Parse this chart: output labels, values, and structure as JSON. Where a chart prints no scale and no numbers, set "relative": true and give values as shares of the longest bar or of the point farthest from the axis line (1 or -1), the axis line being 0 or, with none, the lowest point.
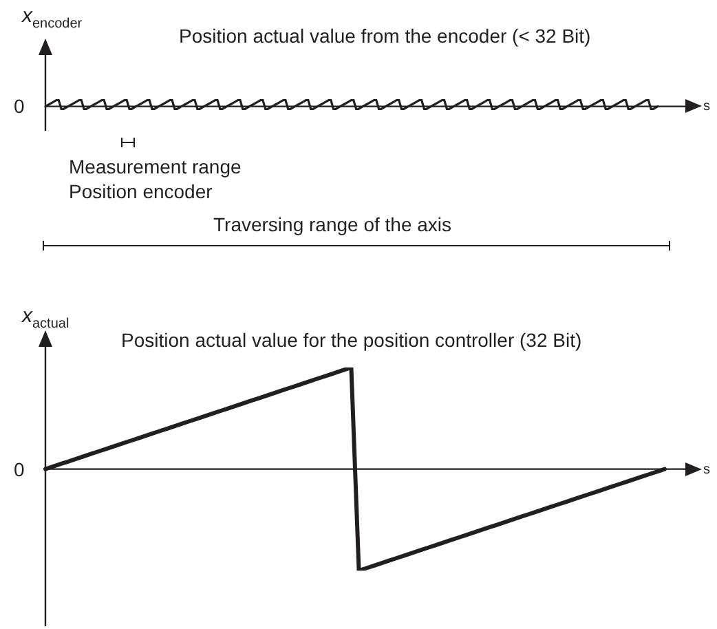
{
  "chart_data": [
    {
      "type": "line",
      "title": "Position actual value from the encoder (< 32 Bit)",
      "ylabel": "x$_{encoder}$",
      "xlabel": "s",
      "relative": true,
      "grid": false,
      "legend": false,
      "marker": "none",
      "line_style": "solid",
      "categories": [
        null,
        null,
        null,
        null,
        null,
        null,
        null,
        null,
        null,
        null,
        null,
        null,
        null,
        null,
        null,
        null,
        null,
        null,
        null,
        null,
        null,
        null,
        null,
        null,
        null,
        null,
        null,
        null,
        null,
        null,
        null,
        null,
        null,
        null,
        null,
        null,
        null,
        null,
        null,
        null,
        null,
        null,
        null,
        null,
        null,
        null,
        null,
        null,
        null,
        null,
        null,
        null,
        null,
        null,
        null,
        null,
        null,
        null,
        null,
        null,
        null,
        null,
        null,
        null,
        null,
        null,
        null,
        null,
        null,
        null,
        null,
        null,
        null,
        null,
        null,
        null,
        null,
        null,
        null,
        null,
        null,
        null,
        null,
        null,
        null,
        null,
        null,
        null,
        null,
        null,
        null,
        null,
        null,
        null,
        null,
        null,
        null,
        null,
        null,
        null,
        null,
        null,
        null,
        null,
        null,
        null,
        null,
        null,
        null,
        null,
        null,
        null,
        null,
        null,
        null,
        null,
        null,
        null,
        null,
        null,
        null,
        null,
        null,
        null,
        null,
        null,
        null,
        null,
        null,
        null,
        null,
        null,
        null,
        null,
        null,
        null,
        null,
        null,
        null,
        null,
        null,
        null,
        null,
        null,
        null,
        null,
        null,
        null,
        null,
        null,
        null,
        null,
        null,
        null,
        null,
        null,
        null,
        null,
        null,
        null,
        null,
        null,
        null,
        null,
        null,
        null,
        null,
        null,
        null,
        null,
        null,
        null,
        null,
        null,
        null,
        null,
        null,
        null,
        null,
        null,
        null,
        null,
        null,
        null,
        null,
        null,
        null,
        null,
        null,
        null
      ],
      "series": [
        {
          "color": "#231f20",
          "values": [
            0,
            0.25,
            0.5,
            0.75,
            1,
            -0.5,
            -0.25,
            0,
            0.25,
            0.5,
            0.75,
            1,
            -0.5,
            -0.25,
            0,
            0.25,
            0.5,
            0.75,
            1,
            -0.5,
            -0.25,
            0,
            0.25,
            0.5,
            0.75,
            1,
            -0.5,
            -0.25,
            0,
            0.25,
            0.5,
            0.75,
            1,
            -0.5,
            -0.25,
            0,
            0.25,
            0.5,
            0.75,
            1,
            -0.5,
            -0.25,
            0,
            0.25,
            0.5,
            0.75,
            1,
            -0.5,
            -0.25,
            0,
            0.25,
            0.5,
            0.75,
            1,
            -0.5,
            -0.25,
            0,
            0.25,
            0.5,
            0.75,
            1,
            -0.5,
            -0.25,
            0,
            0.25,
            0.5,
            0.75,
            1,
            -0.5,
            -0.25,
            0,
            0.25,
            0.5,
            0.75,
            1,
            -0.5,
            -0.25,
            0,
            0.25,
            0.5,
            0.75,
            1,
            -0.5,
            -0.25,
            0,
            0.25,
            0.5,
            0.75,
            1,
            -0.5,
            -0.25,
            0,
            0.25,
            0.5,
            0.75,
            1,
            -0.5,
            -0.25,
            0,
            0.25,
            0.5,
            0.75,
            1,
            -0.5,
            -0.25,
            0,
            0.25,
            0.5,
            0.75,
            1,
            -0.5,
            -0.25,
            0,
            0.25,
            0.5,
            0.75,
            1,
            -0.5,
            -0.25,
            0,
            0.25,
            0.5,
            0.75,
            1,
            -0.5,
            -0.25,
            0,
            0.25,
            0.5,
            0.75,
            1,
            -0.5,
            -0.25,
            0,
            0.25,
            0.5,
            0.75,
            1,
            -0.5,
            -0.25,
            0,
            0.25,
            0.5,
            0.75,
            1,
            -0.5,
            -0.25,
            0,
            0.25,
            0.5,
            0.75,
            1,
            -0.5,
            -0.25,
            0,
            0.25,
            0.5,
            0.75,
            1,
            -0.5,
            -0.25,
            0,
            0.25,
            0.5,
            0.75,
            1,
            -0.5,
            -0.25,
            0,
            0.25,
            0.5,
            0.75,
            1,
            -0.5,
            -0.25,
            0,
            0.25,
            0.5,
            0.75,
            1,
            -0.5,
            -0.25,
            0,
            0.25,
            0.5,
            0.75,
            1,
            -0.5,
            -0.25,
            0
          ]
        }
      ],
      "annotations": [
        "0",
        "Measurement range",
        "Position encoder",
        "Traversing range of the axis"
      ]
    },
    {
      "type": "line",
      "title": "Position actual value for the position controller (32 Bit)",
      "ylabel": "x$_{actual}$",
      "xlabel": "s",
      "relative": true,
      "grid": false,
      "legend": false,
      "marker": "none",
      "line_style": "solid",
      "categories": [
        null,
        null,
        null,
        null,
        null,
        null,
        null,
        null,
        null,
        null,
        null,
        null,
        null,
        null,
        null,
        null,
        null,
        null,
        null,
        null,
        null,
        null,
        null,
        null,
        null,
        null,
        null,
        null,
        null,
        null,
        null,
        null,
        null,
        null,
        null,
        null,
        null,
        null,
        null,
        null,
        null,
        null,
        null,
        null,
        null,
        null,
        null,
        null,
        null,
        null,
        null,
        null,
        null,
        null,
        null,
        null,
        null,
        null,
        null,
        null,
        null,
        null,
        null,
        null,
        null,
        null,
        null,
        null,
        null,
        null,
        null,
        null,
        null,
        null,
        null,
        null,
        null,
        null,
        null,
        null,
        null,
        null
      ],
      "series": [
        {
          "color": "#231f20",
          "values": [
            0,
            0.025,
            0.05,
            0.075,
            0.1,
            0.125,
            0.15,
            0.175,
            0.2,
            0.225,
            0.25,
            0.275,
            0.3,
            0.325,
            0.35,
            0.375,
            0.4,
            0.425,
            0.45,
            0.475,
            0.5,
            0.525,
            0.55,
            0.575,
            0.6,
            0.625,
            0.65,
            0.675,
            0.7,
            0.725,
            0.75,
            0.775,
            0.8,
            0.825,
            0.85,
            0.875,
            0.9,
            0.925,
            0.95,
            0.975,
            1,
            -1,
            -0.975,
            -0.95,
            -0.925,
            -0.9,
            -0.875,
            -0.85,
            -0.825,
            -0.8,
            -0.775,
            -0.75,
            -0.725,
            -0.7,
            -0.675,
            -0.65,
            -0.625,
            -0.6,
            -0.575,
            -0.55,
            -0.525,
            -0.5,
            -0.475,
            -0.45,
            -0.425,
            -0.4,
            -0.375,
            -0.35,
            -0.325,
            -0.3,
            -0.275,
            -0.25,
            -0.225,
            -0.2,
            -0.175,
            -0.15,
            -0.125,
            -0.1,
            -0.075,
            -0.05,
            -0.025,
            0
          ]
        }
      ],
      "annotations": [
        "0"
      ]
    }
  ]
}
